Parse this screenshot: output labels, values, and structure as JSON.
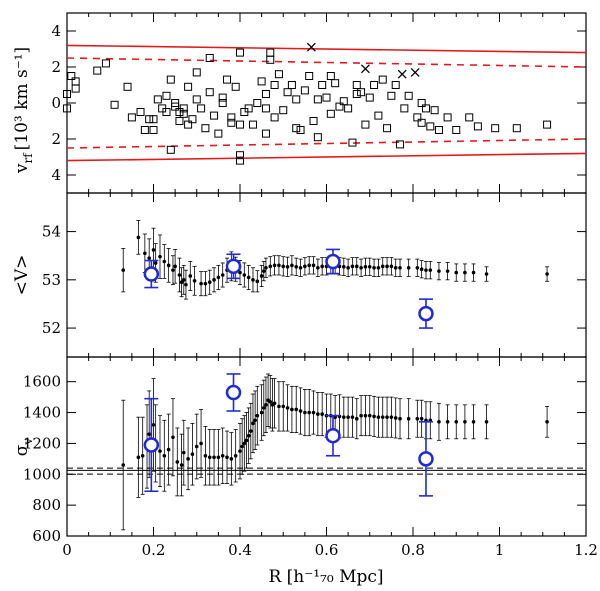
{
  "colors": {
    "ink": "#000000",
    "red": "#e31a1c",
    "blue": "#1f2bd6"
  },
  "chart_data": [
    {
      "name": "velocity",
      "type": "scatter",
      "ylabel_main": "v",
      "ylabel_sub": "rf",
      "ylabel_units": "[10³ km s⁻¹]",
      "xlim": [
        0,
        1.2
      ],
      "ylim": [
        -5,
        5
      ],
      "ytick_values": [
        -4,
        -2,
        0,
        2,
        4
      ],
      "ytick_labels": [
        "4",
        "2",
        "0",
        "2",
        "4"
      ],
      "members_marker": "open-square",
      "members": [
        [
          0.0,
          0.5
        ],
        [
          0.01,
          1.5
        ],
        [
          0.0,
          -0.3
        ],
        [
          0.02,
          1.2
        ],
        [
          0.02,
          0.8
        ],
        [
          0.07,
          1.8
        ],
        [
          0.09,
          2.2
        ],
        [
          0.11,
          -0.1
        ],
        [
          0.14,
          0.9
        ],
        [
          0.15,
          -0.8
        ],
        [
          0.17,
          -0.5
        ],
        [
          0.18,
          -1.5
        ],
        [
          0.19,
          -0.9
        ],
        [
          0.2,
          -1.5
        ],
        [
          0.2,
          -0.9
        ],
        [
          0.21,
          0.2
        ],
        [
          0.22,
          -0.3
        ],
        [
          0.23,
          0.4
        ],
        [
          0.23,
          -0.5
        ],
        [
          0.24,
          -2.6
        ],
        [
          0.24,
          1.3
        ],
        [
          0.25,
          0.0
        ],
        [
          0.25,
          -0.2
        ],
        [
          0.26,
          -1.0
        ],
        [
          0.26,
          -0.5
        ],
        [
          0.27,
          -0.3
        ],
        [
          0.27,
          -0.6
        ],
        [
          0.28,
          -1.2
        ],
        [
          0.28,
          0.9
        ],
        [
          0.29,
          -0.9
        ],
        [
          0.3,
          1.7
        ],
        [
          0.3,
          0.2
        ],
        [
          0.31,
          -0.3
        ],
        [
          0.32,
          -1.4
        ],
        [
          0.33,
          0.6
        ],
        [
          0.33,
          2.5
        ],
        [
          0.34,
          -0.7
        ],
        [
          0.35,
          -1.7
        ],
        [
          0.36,
          0.0
        ],
        [
          0.36,
          0.3
        ],
        [
          0.37,
          1.3
        ],
        [
          0.38,
          -0.8
        ],
        [
          0.38,
          -1.1
        ],
        [
          0.39,
          0.9
        ],
        [
          0.4,
          2.8
        ],
        [
          0.4,
          -1.2
        ],
        [
          0.4,
          -2.9
        ],
        [
          0.4,
          -3.2
        ],
        [
          0.41,
          -0.5
        ],
        [
          0.42,
          -0.3
        ],
        [
          0.43,
          -1.2
        ],
        [
          0.44,
          0.0
        ],
        [
          0.45,
          1.2
        ],
        [
          0.46,
          -1.7
        ],
        [
          0.46,
          0.5
        ],
        [
          0.46,
          -0.3
        ],
        [
          0.47,
          2.8
        ],
        [
          0.47,
          2.4
        ],
        [
          0.48,
          -0.8
        ],
        [
          0.48,
          1.0
        ],
        [
          0.49,
          1.6
        ],
        [
          0.5,
          -0.4
        ],
        [
          0.51,
          0.6
        ],
        [
          0.52,
          1.0
        ],
        [
          0.53,
          -1.4
        ],
        [
          0.53,
          0.2
        ],
        [
          0.54,
          -1.5
        ],
        [
          0.55,
          0.7
        ],
        [
          0.56,
          1.5
        ],
        [
          0.57,
          -1.0
        ],
        [
          0.58,
          -1.9
        ],
        [
          0.58,
          0.2
        ],
        [
          0.59,
          1.0
        ],
        [
          0.6,
          0.3
        ],
        [
          0.61,
          1.5
        ],
        [
          0.61,
          -0.6
        ],
        [
          0.62,
          1.1
        ],
        [
          0.63,
          -0.2
        ],
        [
          0.64,
          0.1
        ],
        [
          0.65,
          -0.3
        ],
        [
          0.66,
          -2.2
        ],
        [
          0.67,
          1.0
        ],
        [
          0.67,
          0.5
        ],
        [
          0.68,
          0.6
        ],
        [
          0.69,
          -1.2
        ],
        [
          0.7,
          0.3
        ],
        [
          0.71,
          1.0
        ],
        [
          0.72,
          -0.7
        ],
        [
          0.73,
          1.3
        ],
        [
          0.74,
          -1.4
        ],
        [
          0.75,
          0.4
        ],
        [
          0.76,
          1.0
        ],
        [
          0.77,
          -2.3
        ],
        [
          0.78,
          -0.3
        ],
        [
          0.79,
          0.4
        ],
        [
          0.81,
          -0.8
        ],
        [
          0.82,
          -1.1
        ],
        [
          0.82,
          0.0
        ],
        [
          0.83,
          -0.3
        ],
        [
          0.84,
          -1.3
        ],
        [
          0.85,
          -0.4
        ],
        [
          0.86,
          -1.5
        ],
        [
          0.88,
          -0.8
        ],
        [
          0.9,
          -1.5
        ],
        [
          0.93,
          -0.8
        ],
        [
          0.95,
          -1.3
        ],
        [
          0.99,
          -1.4
        ],
        [
          1.04,
          -1.4
        ],
        [
          1.11,
          -1.2
        ]
      ],
      "interlopers_marker": "cross",
      "interlopers": [
        [
          0.565,
          3.1
        ],
        [
          0.69,
          1.9
        ],
        [
          0.775,
          1.6
        ],
        [
          0.805,
          1.7
        ]
      ],
      "caustic_solid": {
        "x": [
          0,
          1.2
        ],
        "y": [
          3.2,
          2.8
        ]
      },
      "caustic_dashed": {
        "x": [
          0,
          1.2
        ],
        "y": [
          2.5,
          2.0
        ]
      }
    },
    {
      "name": "mean_velocity",
      "type": "scatter",
      "ylabel": "<V>",
      "xlim": [
        0,
        1.2
      ],
      "ylim": [
        51.4,
        54.8
      ],
      "ytick_values": [
        52,
        53,
        54
      ],
      "ytick_labels": [
        "52",
        "53",
        "54"
      ],
      "profile": [
        [
          0.13,
          53.2,
          0.45
        ],
        [
          0.165,
          53.88,
          0.35
        ],
        [
          0.18,
          53.55,
          0.4
        ],
        [
          0.19,
          53.45,
          0.4
        ],
        [
          0.2,
          53.62,
          0.45
        ],
        [
          0.205,
          53.35,
          0.4
        ],
        [
          0.215,
          53.48,
          0.45
        ],
        [
          0.225,
          53.38,
          0.35
        ],
        [
          0.235,
          53.3,
          0.35
        ],
        [
          0.245,
          53.2,
          0.3
        ],
        [
          0.25,
          53.28,
          0.35
        ],
        [
          0.26,
          53.1,
          0.35
        ],
        [
          0.265,
          52.95,
          0.3
        ],
        [
          0.27,
          53.0,
          0.3
        ],
        [
          0.275,
          52.9,
          0.3
        ],
        [
          0.285,
          53.08,
          0.3
        ],
        [
          0.295,
          52.98,
          0.3
        ],
        [
          0.31,
          52.92,
          0.25
        ],
        [
          0.32,
          52.92,
          0.25
        ],
        [
          0.33,
          52.95,
          0.25
        ],
        [
          0.34,
          53.0,
          0.25
        ],
        [
          0.35,
          53.05,
          0.25
        ],
        [
          0.36,
          53.1,
          0.25
        ],
        [
          0.37,
          53.2,
          0.25
        ],
        [
          0.38,
          53.28,
          0.3
        ],
        [
          0.39,
          53.22,
          0.25
        ],
        [
          0.4,
          53.15,
          0.25
        ],
        [
          0.41,
          53.1,
          0.25
        ],
        [
          0.42,
          53.05,
          0.25
        ],
        [
          0.43,
          53.0,
          0.25
        ],
        [
          0.44,
          52.97,
          0.22
        ],
        [
          0.45,
          53.08,
          0.22
        ],
        [
          0.455,
          53.18,
          0.2
        ],
        [
          0.46,
          53.25,
          0.2
        ],
        [
          0.47,
          53.28,
          0.2
        ],
        [
          0.48,
          53.3,
          0.2
        ],
        [
          0.49,
          53.3,
          0.2
        ],
        [
          0.5,
          53.28,
          0.2
        ],
        [
          0.51,
          53.27,
          0.2
        ],
        [
          0.52,
          53.3,
          0.2
        ],
        [
          0.53,
          53.27,
          0.18
        ],
        [
          0.54,
          53.25,
          0.18
        ],
        [
          0.55,
          53.28,
          0.18
        ],
        [
          0.56,
          53.3,
          0.18
        ],
        [
          0.57,
          53.3,
          0.18
        ],
        [
          0.58,
          53.25,
          0.18
        ],
        [
          0.59,
          53.28,
          0.18
        ],
        [
          0.6,
          53.28,
          0.18
        ],
        [
          0.61,
          53.3,
          0.18
        ],
        [
          0.62,
          53.3,
          0.18
        ],
        [
          0.63,
          53.28,
          0.18
        ],
        [
          0.64,
          53.27,
          0.18
        ],
        [
          0.65,
          53.25,
          0.18
        ],
        [
          0.66,
          53.28,
          0.18
        ],
        [
          0.67,
          53.28,
          0.18
        ],
        [
          0.68,
          53.25,
          0.18
        ],
        [
          0.69,
          53.27,
          0.18
        ],
        [
          0.7,
          53.27,
          0.18
        ],
        [
          0.71,
          53.25,
          0.18
        ],
        [
          0.72,
          53.25,
          0.18
        ],
        [
          0.73,
          53.28,
          0.18
        ],
        [
          0.74,
          53.28,
          0.18
        ],
        [
          0.75,
          53.28,
          0.18
        ],
        [
          0.76,
          53.25,
          0.18
        ],
        [
          0.77,
          53.25,
          0.18
        ],
        [
          0.79,
          53.25,
          0.18
        ],
        [
          0.81,
          53.25,
          0.18
        ],
        [
          0.82,
          53.22,
          0.18
        ],
        [
          0.83,
          53.2,
          0.18
        ],
        [
          0.84,
          53.2,
          0.18
        ],
        [
          0.86,
          53.18,
          0.18
        ],
        [
          0.88,
          53.18,
          0.18
        ],
        [
          0.9,
          53.15,
          0.18
        ],
        [
          0.92,
          53.15,
          0.18
        ],
        [
          0.94,
          53.15,
          0.18
        ],
        [
          0.97,
          53.12,
          0.15
        ],
        [
          1.11,
          53.12,
          0.15
        ]
      ],
      "groups": [
        [
          0.195,
          53.12,
          0.28
        ],
        [
          0.385,
          53.28,
          0.25
        ],
        [
          0.615,
          53.38,
          0.25
        ],
        [
          0.83,
          52.3,
          0.3
        ]
      ]
    },
    {
      "name": "velocity_dispersion",
      "type": "scatter",
      "ylabel_main": "σ",
      "ylabel_sub": "v",
      "xlabel": "R [h⁻¹₇₀ Mpc]",
      "xlim": [
        0,
        1.2
      ],
      "ylim": [
        600,
        1760
      ],
      "xtick_values": [
        0,
        0.2,
        0.4,
        0.6,
        0.8,
        1,
        1.2
      ],
      "xtick_labels": [
        "0",
        "0.2",
        "0.4",
        "0.6",
        "0.8",
        "1",
        "1.2"
      ],
      "ytick_values": [
        600,
        800,
        1000,
        1200,
        1400,
        1600
      ],
      "ytick_labels": [
        "600",
        "800",
        "1000",
        "1200",
        "1400",
        "1600"
      ],
      "reference_lines": [
        1040,
        1025
      ],
      "reference_line": 1025,
      "profile": [
        [
          0.13,
          1060,
          420
        ],
        [
          0.165,
          1110,
          260
        ],
        [
          0.175,
          1120,
          250
        ],
        [
          0.185,
          1180,
          270
        ],
        [
          0.19,
          1260,
          280
        ],
        [
          0.2,
          1320,
          300
        ],
        [
          0.205,
          1200,
          250
        ],
        [
          0.215,
          1150,
          230
        ],
        [
          0.225,
          1120,
          230
        ],
        [
          0.235,
          1160,
          230
        ],
        [
          0.245,
          1240,
          250
        ],
        [
          0.255,
          1080,
          220
        ],
        [
          0.265,
          1060,
          200
        ],
        [
          0.27,
          1140,
          210
        ],
        [
          0.28,
          1100,
          200
        ],
        [
          0.29,
          1130,
          200
        ],
        [
          0.3,
          1180,
          210
        ],
        [
          0.31,
          1200,
          220
        ],
        [
          0.32,
          1120,
          190
        ],
        [
          0.33,
          1110,
          180
        ],
        [
          0.34,
          1110,
          180
        ],
        [
          0.35,
          1110,
          180
        ],
        [
          0.36,
          1120,
          180
        ],
        [
          0.37,
          1110,
          170
        ],
        [
          0.38,
          1100,
          170
        ],
        [
          0.39,
          1120,
          170
        ],
        [
          0.4,
          1150,
          180
        ],
        [
          0.405,
          1180,
          180
        ],
        [
          0.41,
          1200,
          180
        ],
        [
          0.415,
          1220,
          180
        ],
        [
          0.42,
          1250,
          180
        ],
        [
          0.425,
          1280,
          180
        ],
        [
          0.43,
          1330,
          190
        ],
        [
          0.435,
          1350,
          190
        ],
        [
          0.44,
          1380,
          190
        ],
        [
          0.45,
          1400,
          180
        ],
        [
          0.455,
          1430,
          180
        ],
        [
          0.46,
          1450,
          180
        ],
        [
          0.465,
          1480,
          170
        ],
        [
          0.47,
          1470,
          170
        ],
        [
          0.475,
          1450,
          170
        ],
        [
          0.48,
          1460,
          160
        ],
        [
          0.49,
          1440,
          160
        ],
        [
          0.5,
          1440,
          160
        ],
        [
          0.51,
          1430,
          150
        ],
        [
          0.52,
          1420,
          150
        ],
        [
          0.53,
          1420,
          150
        ],
        [
          0.54,
          1410,
          150
        ],
        [
          0.55,
          1400,
          150
        ],
        [
          0.56,
          1400,
          150
        ],
        [
          0.57,
          1400,
          140
        ],
        [
          0.58,
          1390,
          140
        ],
        [
          0.59,
          1390,
          140
        ],
        [
          0.6,
          1380,
          140
        ],
        [
          0.61,
          1380,
          140
        ],
        [
          0.62,
          1370,
          140
        ],
        [
          0.63,
          1375,
          140
        ],
        [
          0.64,
          1370,
          130
        ],
        [
          0.65,
          1370,
          130
        ],
        [
          0.66,
          1370,
          130
        ],
        [
          0.67,
          1360,
          130
        ],
        [
          0.68,
          1380,
          130
        ],
        [
          0.69,
          1380,
          130
        ],
        [
          0.7,
          1380,
          130
        ],
        [
          0.71,
          1375,
          130
        ],
        [
          0.72,
          1370,
          130
        ],
        [
          0.73,
          1370,
          130
        ],
        [
          0.74,
          1370,
          130
        ],
        [
          0.75,
          1370,
          130
        ],
        [
          0.76,
          1365,
          130
        ],
        [
          0.77,
          1360,
          130
        ],
        [
          0.79,
          1360,
          130
        ],
        [
          0.81,
          1360,
          120
        ],
        [
          0.82,
          1360,
          120
        ],
        [
          0.83,
          1350,
          120
        ],
        [
          0.84,
          1350,
          120
        ],
        [
          0.86,
          1340,
          120
        ],
        [
          0.88,
          1340,
          110
        ],
        [
          0.9,
          1340,
          110
        ],
        [
          0.92,
          1340,
          110
        ],
        [
          0.94,
          1340,
          110
        ],
        [
          0.97,
          1340,
          110
        ],
        [
          1.11,
          1340,
          100
        ]
      ],
      "groups": [
        [
          0.195,
          1190,
          300
        ],
        [
          0.385,
          1530,
          120
        ],
        [
          0.615,
          1250,
          130
        ],
        [
          0.83,
          1100,
          240
        ]
      ]
    }
  ]
}
